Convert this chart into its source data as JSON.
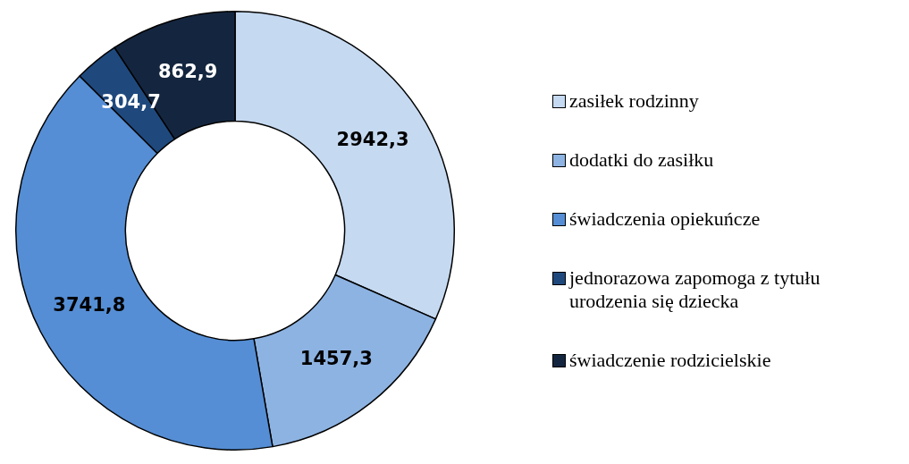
{
  "chart_data": {
    "type": "donut",
    "categories": [
      "zasiłek rodzinny",
      "dodatki do zasiłku",
      "świadczenia opiekuńcze",
      "jednorazowa zapomoga z tytułu urodzenia się dziecka",
      "świadczenie rodzicielskie"
    ],
    "values": [
      2942.3,
      1457.3,
      3741.8,
      304.7,
      862.9
    ],
    "value_labels": [
      "2942,3",
      "1457,3",
      "3741,8",
      "304,7",
      "862,9"
    ],
    "colors": [
      "#c5d9f1",
      "#8db3e2",
      "#558ed5",
      "#1f497d",
      "#14263f"
    ],
    "legend": "right"
  }
}
